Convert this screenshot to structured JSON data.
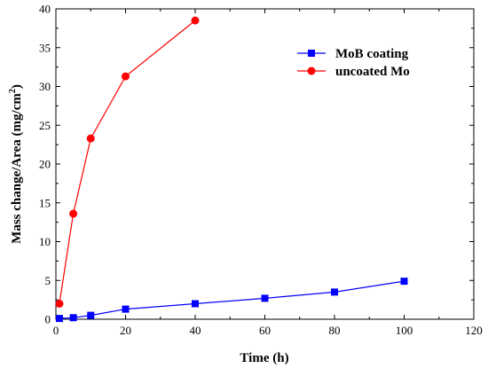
{
  "chart_data": {
    "type": "line",
    "xlabel": "Time (h)",
    "ylabel": "Mass change/Area (mg/cm",
    "ylabel_sup": "2",
    "ylabel_close": ")",
    "xlim": [
      0,
      120
    ],
    "ylim": [
      0,
      40
    ],
    "xticks": [
      0,
      20,
      40,
      60,
      80,
      100,
      120
    ],
    "yticks": [
      0,
      5,
      10,
      15,
      20,
      25,
      30,
      35,
      40
    ],
    "grid": false,
    "legend_position": "top-right",
    "series": [
      {
        "name": "MoB coating",
        "color": "#0000ff",
        "marker": "square",
        "x": [
          1,
          5,
          10,
          20,
          40,
          60,
          80,
          100
        ],
        "y": [
          0.1,
          0.2,
          0.5,
          1.3,
          2.0,
          2.7,
          3.5,
          4.9
        ]
      },
      {
        "name": "uncoated Mo",
        "color": "#ff0000",
        "marker": "circle",
        "x": [
          1,
          5,
          10,
          20,
          40
        ],
        "y": [
          2.0,
          13.6,
          23.3,
          31.3,
          38.5
        ]
      }
    ]
  }
}
